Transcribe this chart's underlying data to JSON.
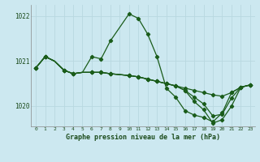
{
  "title": "Graphe pression niveau de la mer (hPa)",
  "bg_color": "#cce8f0",
  "grid_color": "#aaccdd",
  "line_color": "#1a5c1a",
  "xlim": [
    -0.5,
    23.5
  ],
  "ylim": [
    1019.55,
    1022.25
  ],
  "yticks": [
    1020,
    1021,
    1022
  ],
  "xticks": [
    0,
    1,
    2,
    3,
    4,
    5,
    6,
    7,
    8,
    9,
    10,
    11,
    12,
    13,
    14,
    15,
    16,
    17,
    18,
    19,
    20,
    21,
    22,
    23
  ],
  "series1_x": [
    0,
    1,
    2,
    3,
    4,
    5,
    6,
    7,
    8,
    9,
    10,
    11,
    12,
    13,
    14,
    15,
    16,
    17,
    18,
    19,
    20,
    21,
    22,
    23
  ],
  "series1_y": [
    1020.85,
    1021.1,
    1021.0,
    1020.8,
    1020.72,
    1020.75,
    1021.1,
    1021.05,
    1021.45,
    1021.75,
    1022.05,
    1021.95,
    1021.6,
    1021.1,
    1020.4,
    1020.2,
    1019.9,
    1019.8,
    1019.75,
    1019.65,
    1019.85,
    1020.3,
    1020.42,
    1020.47
  ],
  "series2_x": [
    0,
    1,
    2,
    3,
    4,
    5,
    6,
    7,
    8,
    9,
    10,
    11,
    12,
    13,
    14,
    15,
    16,
    17,
    18,
    19,
    20,
    21,
    22,
    23
  ],
  "series2_y": [
    1020.85,
    1021.1,
    1021.0,
    1020.8,
    1020.72,
    1020.75,
    1020.75,
    1020.75,
    1020.72,
    1020.7,
    1020.68,
    1020.65,
    1020.6,
    1020.55,
    1020.5,
    1020.45,
    1020.4,
    1020.35,
    1020.3,
    1020.25,
    1020.22,
    1020.3,
    1020.42,
    1020.47
  ],
  "series3_x": [
    0,
    1,
    2,
    3,
    4,
    5,
    6,
    7,
    8,
    9,
    10,
    11,
    12,
    13,
    14,
    15,
    16,
    17,
    18,
    19,
    20,
    21,
    22,
    23
  ],
  "series3_y": [
    1020.85,
    1021.1,
    1021.0,
    1020.8,
    1020.72,
    1020.75,
    1020.75,
    1020.75,
    1020.72,
    1020.7,
    1020.68,
    1020.65,
    1020.6,
    1020.55,
    1020.5,
    1020.45,
    1020.35,
    1020.2,
    1020.05,
    1019.78,
    1019.82,
    1020.18,
    1020.42,
    1020.47
  ],
  "series4_x": [
    0,
    1,
    2,
    3,
    4,
    5,
    6,
    7,
    8,
    9,
    10,
    11,
    12,
    13,
    14,
    15,
    16,
    17,
    18,
    19,
    20,
    21,
    22,
    23
  ],
  "series4_y": [
    1020.85,
    1021.1,
    1021.0,
    1020.8,
    1020.72,
    1020.75,
    1020.75,
    1020.75,
    1020.72,
    1020.7,
    1020.68,
    1020.65,
    1020.6,
    1020.55,
    1020.5,
    1020.45,
    1020.35,
    1020.1,
    1019.92,
    1019.62,
    1019.7,
    1020.0,
    1020.42,
    1020.47
  ],
  "marker_x": [
    0,
    1,
    3,
    4,
    6,
    7,
    8,
    10,
    11,
    12,
    13,
    14,
    15,
    16,
    17,
    18,
    19,
    20,
    21,
    22,
    23
  ]
}
